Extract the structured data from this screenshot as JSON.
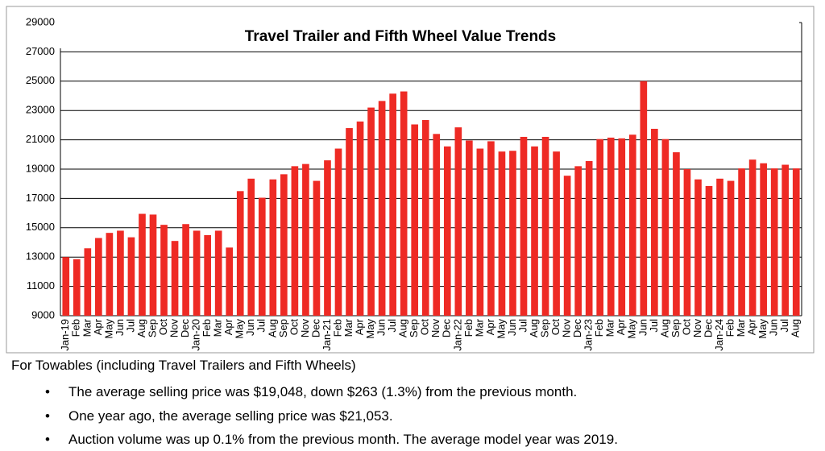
{
  "chart_data": {
    "type": "bar",
    "title": "Travel Trailer and Fifth Wheel Value Trends",
    "categories": [
      "Jan-19",
      "Feb",
      "Mar",
      "Apr",
      "May",
      "Jun",
      "Jul",
      "Aug",
      "Sep",
      "Oct",
      "Nov",
      "Dec",
      "Jan-20",
      "Feb",
      "Mar",
      "Apr",
      "May",
      "Jun",
      "Jul",
      "Aug",
      "Sep",
      "Oct",
      "Nov",
      "Dec",
      "Jan-21",
      "Feb",
      "Mar",
      "Apr",
      "May",
      "Jun",
      "Jul",
      "Aug",
      "Sep",
      "Oct",
      "Nov",
      "Dec",
      "Jan-22",
      "Feb",
      "Mar",
      "Apr",
      "May",
      "Jun",
      "Jul",
      "Aug",
      "Sep",
      "Oct",
      "Nov",
      "Dec",
      "Jan-23",
      "Feb",
      "Mar",
      "Apr",
      "May",
      "Jun",
      "Jul",
      "Aug",
      "Sep",
      "Oct",
      "Nov",
      "Dec",
      "Jan-24",
      "Feb",
      "Mar",
      "Apr",
      "May",
      "Jun",
      "Jul",
      "Aug"
    ],
    "values": [
      13000,
      12850,
      13600,
      14300,
      14650,
      14800,
      14350,
      15950,
      15900,
      15200,
      14100,
      15250,
      14800,
      14500,
      14800,
      13650,
      17500,
      18350,
      17050,
      18300,
      18650,
      19200,
      19350,
      18200,
      19600,
      20400,
      21800,
      22250,
      23200,
      23650,
      24150,
      24300,
      22050,
      22350,
      21400,
      20550,
      21850,
      20950,
      20400,
      20900,
      20200,
      20250,
      21200,
      20550,
      21200,
      20200,
      18550,
      19200,
      19550,
      21050,
      21150,
      21100,
      21350,
      25000,
      21750,
      21050,
      20150,
      19000,
      18300,
      17850,
      18350,
      18200,
      19050,
      19650,
      19400,
      19050,
      19300,
      19050
    ],
    "color": "#ee2a24",
    "ylim": [
      9000,
      29000
    ],
    "yticks": [
      9000,
      11000,
      13000,
      15000,
      17000,
      19000,
      21000,
      23000,
      25000,
      27000,
      29000
    ],
    "grid": true
  },
  "text": {
    "heading": "For Towables (including Travel Trailers and Fifth Wheels)",
    "bullets": [
      "The average selling price was $19,048, down $263 (1.3%) from the previous month.",
      "One year ago, the average selling price was $21,053.",
      "Auction volume was up 0.1% from the previous month.  The average model year was 2019."
    ]
  }
}
